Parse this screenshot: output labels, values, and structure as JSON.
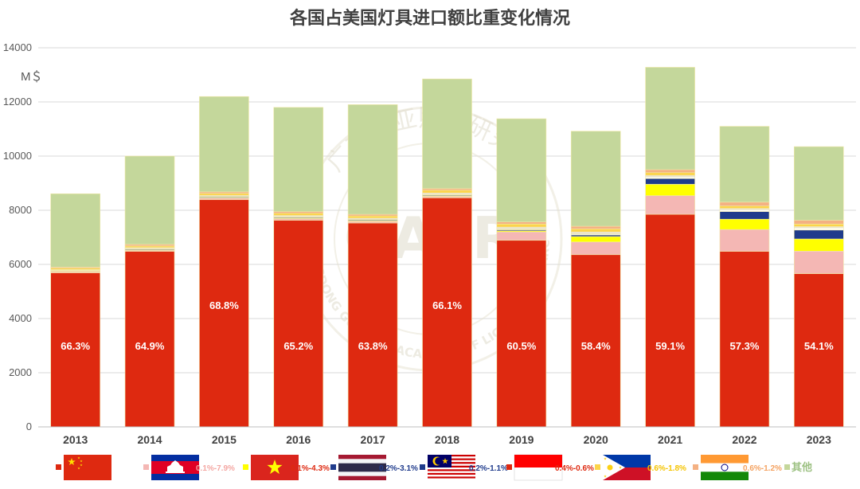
{
  "chart_data": {
    "type": "bar",
    "stacked": true,
    "title": "各国占美国灯具进口额比重变化情况",
    "ylabel": "M＄",
    "ylim": [
      0,
      14000
    ],
    "yticks": [
      0,
      2000,
      4000,
      6000,
      8000,
      10000,
      12000,
      14000
    ],
    "grid": true,
    "categories": [
      "2013",
      "2014",
      "2015",
      "2016",
      "2017",
      "2018",
      "2019",
      "2020",
      "2021",
      "2022",
      "2023"
    ],
    "series": [
      {
        "name": "China",
        "color": "#de2910",
        "values": [
          5690,
          6480,
          8390,
          7630,
          7530,
          8460,
          6890,
          6360,
          7850,
          6480,
          5660
        ]
      },
      {
        "name": "Cambodia",
        "color": "#f4b7b4",
        "values": [
          40,
          40,
          60,
          60,
          60,
          50,
          310,
          470,
          690,
          810,
          830
        ]
      },
      {
        "name": "Vietnam",
        "color": "#ffff00",
        "values": [
          10,
          10,
          10,
          20,
          20,
          20,
          40,
          200,
          420,
          380,
          450
        ]
      },
      {
        "name": "Thailand",
        "color": "#1f3b8c",
        "values": [
          20,
          30,
          30,
          30,
          30,
          30,
          40,
          60,
          210,
          280,
          330
        ]
      },
      {
        "name": "Malaysia",
        "color": "#ffffff",
        "values": [
          20,
          20,
          20,
          20,
          20,
          20,
          30,
          40,
          60,
          70,
          80
        ]
      },
      {
        "name": "Indonesia",
        "color": "#e8e2d8",
        "values": [
          30,
          40,
          40,
          50,
          50,
          60,
          70,
          70,
          60,
          50,
          50
        ]
      },
      {
        "name": "Philippines",
        "color": "#fcd44a",
        "values": [
          50,
          60,
          70,
          80,
          80,
          100,
          110,
          110,
          100,
          90,
          90
        ]
      },
      {
        "name": "India",
        "color": "#f4b183",
        "values": [
          40,
          60,
          60,
          60,
          60,
          60,
          80,
          100,
          110,
          140,
          140
        ]
      },
      {
        "name": "其他",
        "color": "#c4d79b",
        "values": [
          2710,
          3260,
          3520,
          3850,
          4050,
          4050,
          3810,
          3510,
          3780,
          2800,
          2720
        ]
      }
    ],
    "data_labels": [
      "66.3%",
      "64.9%",
      "68.8%",
      "65.2%",
      "63.8%",
      "66.1%",
      "60.5%",
      "58.4%",
      "59.1%",
      "57.3%",
      "54.1%"
    ],
    "legend": [
      {
        "country": "China",
        "flag": "china-flag",
        "range": "",
        "swatch": "#de2910",
        "text_color": "#de2910"
      },
      {
        "country": "Cambodia",
        "flag": "cambodia-flag",
        "range": "0.1%-7.9%",
        "swatch": "#f4b7b4",
        "text_color": "#f4a7a3"
      },
      {
        "country": "Vietnam",
        "flag": "vietnam-flag",
        "range": "0.1%-4.3%",
        "swatch": "#ffff00",
        "text_color": "#de2910"
      },
      {
        "country": "Thailand",
        "flag": "thailand-flag",
        "range": "0.2%-3.1%",
        "swatch": "#1f3b8c",
        "text_color": "#1f3b8c"
      },
      {
        "country": "Malaysia",
        "flag": "malaysia-flag",
        "range": "0.2%-1.1%",
        "swatch": "#1f3b8c",
        "text_color": "#1f3b8c"
      },
      {
        "country": "Indonesia",
        "flag": "indonesia-flag",
        "range": "0.4%-0.6%",
        "swatch": "#de2910",
        "text_color": "#de2910"
      },
      {
        "country": "Philippines",
        "flag": "philippines-flag",
        "range": "0.6%-1.8%",
        "swatch": "#fcd44a",
        "text_color": "#f5c400"
      },
      {
        "country": "India",
        "flag": "india-flag",
        "range": "0.6%-1.2%",
        "swatch": "#f4b183",
        "text_color": "#f4a261"
      },
      {
        "country": "其他",
        "flag": "",
        "range": "其他",
        "swatch": "#c4d79b",
        "text_color": "#9dc183"
      }
    ]
  },
  "watermark": {
    "top_text": "广东光亚照明研究院",
    "center_text": "GALR",
    "bottom_text": "GUANGDONG GUANGYA ACADEMY OF LIGHTING RESEARCH"
  }
}
